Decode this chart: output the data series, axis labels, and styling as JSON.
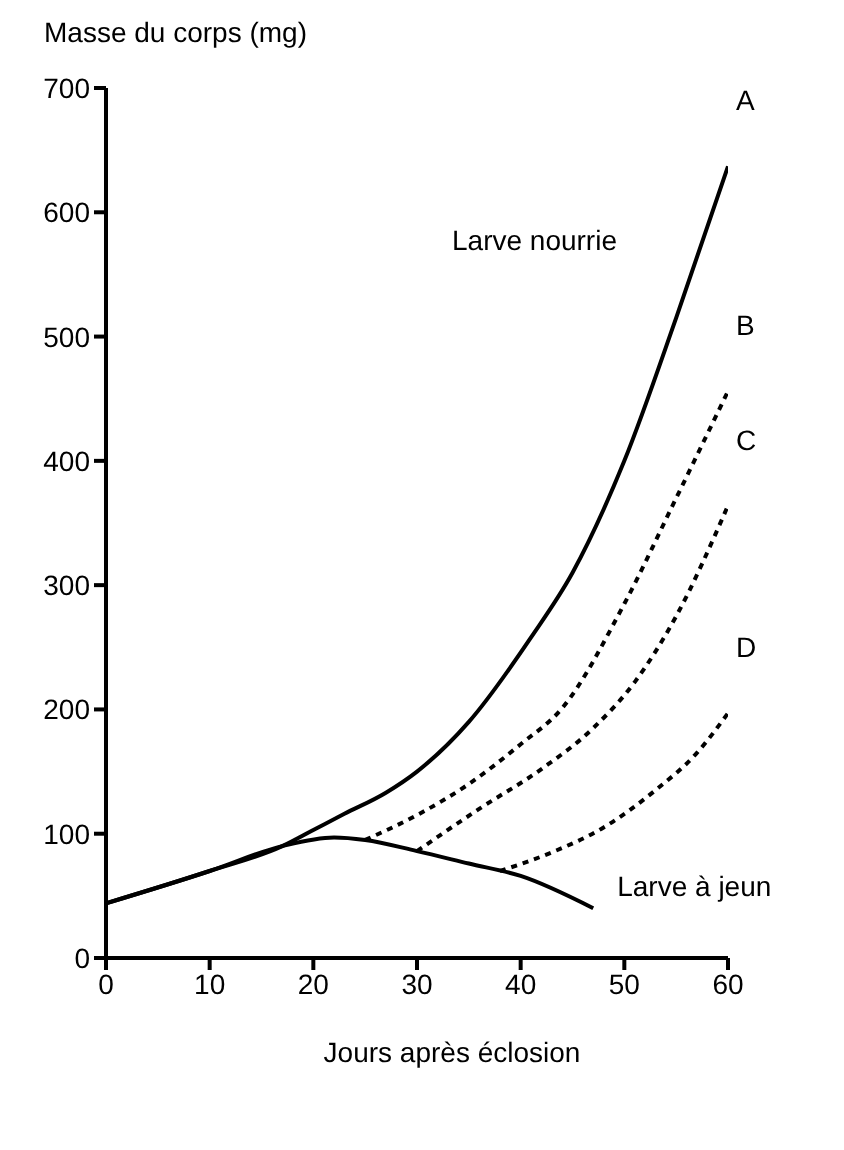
{
  "chart_data": {
    "type": "line",
    "ylabel": "Masse du corps (mg)",
    "xlabel": "Jours après éclosion",
    "xlim": [
      0,
      60
    ],
    "xticks": [
      0,
      10,
      20,
      30,
      40,
      50,
      60
    ],
    "ylim": [
      0,
      700
    ],
    "yticks": [
      0,
      100,
      200,
      300,
      400,
      500,
      600,
      700
    ],
    "grid": false,
    "marker": "none",
    "series": [
      {
        "name": "A",
        "color": "#000000",
        "line_style": "solid",
        "x": [
          0,
          10,
          17,
          20,
          23,
          27,
          30,
          35,
          41,
          45,
          50,
          55,
          60
        ],
        "values": [
          44,
          70,
          90,
          103,
          116,
          133,
          150,
          190,
          258,
          310,
          400,
          515,
          637
        ]
      },
      {
        "name": "B",
        "color": "#000000",
        "line_style": "dotted",
        "x": [
          25,
          30,
          35,
          40,
          44,
          50,
          55,
          60
        ],
        "values": [
          95,
          115,
          140,
          172,
          201,
          285,
          370,
          456
        ]
      },
      {
        "name": "C",
        "color": "#000000",
        "line_style": "dotted",
        "x": [
          30,
          36,
          42,
          47,
          51,
          55,
          60
        ],
        "values": [
          86,
          120,
          152,
          185,
          222,
          275,
          364
        ]
      },
      {
        "name": "D",
        "color": "#000000",
        "line_style": "dotted",
        "x": [
          38,
          43,
          48,
          53,
          57,
          60
        ],
        "values": [
          70,
          85,
          105,
          135,
          165,
          197
        ]
      },
      {
        "name": "Larve à jeun",
        "color": "#000000",
        "line_style": "solid",
        "x": [
          0,
          10,
          17,
          22,
          25,
          30,
          35,
          40,
          47
        ],
        "values": [
          44,
          70,
          90,
          97,
          95,
          86,
          76,
          66,
          40
        ]
      }
    ],
    "annotations": [
      "Larve nourrie"
    ]
  }
}
